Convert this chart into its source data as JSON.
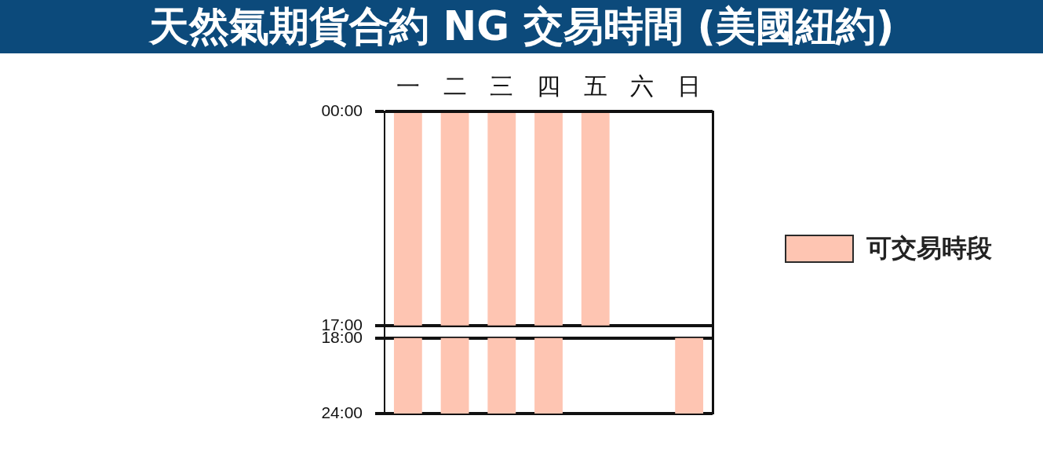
{
  "chart_data": {
    "type": "bar",
    "title": "天然氣期貨合約 NG 交易時間 (美國紐約)",
    "categories": [
      "一",
      "二",
      "三",
      "四",
      "五",
      "六",
      "日"
    ],
    "series": [
      {
        "name": "可交易時段",
        "color": "#fec5b2",
        "values": [
          17,
          17,
          17,
          17,
          17,
          null,
          null
        ],
        "base": [
          0,
          0,
          0,
          0,
          0,
          null,
          null
        ]
      },
      {
        "color": "#fec5b2",
        "values": [
          6,
          6,
          6,
          6,
          null,
          null,
          6
        ],
        "base": [
          18,
          18,
          18,
          18,
          null,
          null,
          18
        ]
      }
    ],
    "ylim": [
      24,
      0
    ],
    "yticks": [
      {
        "value": 0,
        "label": "00:00"
      },
      {
        "value": 17,
        "label": "17:00"
      },
      {
        "value": 18,
        "label": "18:00"
      },
      {
        "value": 24,
        "label": "24:00"
      }
    ],
    "grid": "y",
    "legend": "right"
  }
}
